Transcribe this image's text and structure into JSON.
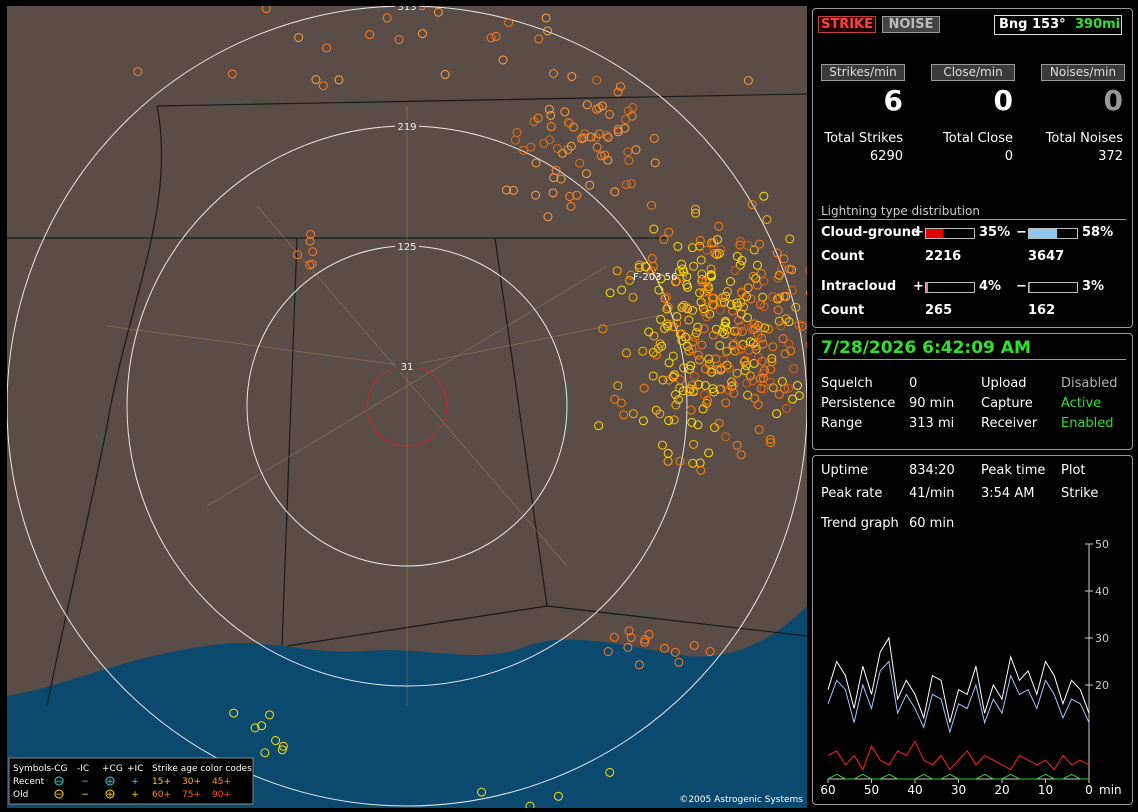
{
  "map": {
    "range_labels": [
      "313",
      "219",
      "125",
      "31"
    ],
    "station_label": "F-203 56",
    "copyright": "©2005 Astrogenic Systems",
    "legend": {
      "symbols_label": "Symbols",
      "symbol_headers": [
        "-CG",
        "-IC",
        "+CG",
        "+IC"
      ],
      "age_label": "Strike age color codes",
      "rows": [
        {
          "label": "Recent",
          "ages": [
            "15+",
            "30+",
            "45+"
          ]
        },
        {
          "label": "Old",
          "ages": [
            "60+",
            "75+",
            "90+"
          ]
        }
      ]
    }
  },
  "status": {
    "strike_button": "STRIKE",
    "noise_button": "NOISE",
    "bearing": "Bng 153°",
    "distance": "390mi"
  },
  "rates": [
    {
      "label": "Strikes/min",
      "value": 6
    },
    {
      "label": "Close/min",
      "value": 0
    },
    {
      "label": "Noises/min",
      "value": 0
    }
  ],
  "totals": [
    {
      "label": "Total Strikes",
      "value": 6290
    },
    {
      "label": "Total Close",
      "value": 0
    },
    {
      "label": "Total Noises",
      "value": 372
    }
  ],
  "distribution": {
    "title": "Lightning type distribution",
    "count_label": "Count",
    "rows": [
      {
        "label": "Cloud-ground",
        "pos_sign": "+",
        "neg_sign": "−",
        "pos": {
          "value": 35,
          "label": "35%",
          "color": "#e00000"
        },
        "neg": {
          "value": 58,
          "label": "58%",
          "color": "#8ec8f0"
        },
        "pos_count": 2216,
        "neg_count": 3647
      },
      {
        "label": "Intracloud",
        "pos_sign": "+",
        "neg_sign": "−",
        "pos": {
          "value": 4,
          "label": "4%",
          "color": "#ff6fa0"
        },
        "neg": {
          "value": 3,
          "label": "3%",
          "color": "#20c040"
        },
        "pos_count": 265,
        "neg_count": 162
      }
    ]
  },
  "timestamp": "7/28/2026 6:42:09 AM",
  "settings": [
    [
      {
        "label": "Squelch",
        "value": "0"
      },
      {
        "label": "Upload",
        "value": "Disabled",
        "color": "#b0b0b0"
      }
    ],
    [
      {
        "label": "Persistence",
        "value": "90 min"
      },
      {
        "label": "Capture",
        "value": "Active",
        "color": "#30e030"
      }
    ],
    [
      {
        "label": "Range",
        "value": "313 mi"
      },
      {
        "label": "Receiver",
        "value": "Enabled",
        "color": "#30e030"
      }
    ]
  ],
  "stats": [
    [
      {
        "label": "Uptime",
        "value": "834:20"
      },
      {
        "label": "Peak time",
        "value": "Plot"
      }
    ],
    [
      {
        "label": "Peak rate",
        "value": "41/min"
      },
      {
        "label": "3:54 AM",
        "value": "Strike"
      }
    ],
    [
      {
        "label": "Trend graph",
        "value": "60 min"
      }
    ]
  ],
  "chart_data": {
    "type": "line",
    "x": [
      60,
      58,
      56,
      54,
      52,
      50,
      48,
      46,
      44,
      42,
      40,
      38,
      36,
      34,
      32,
      30,
      28,
      26,
      24,
      22,
      20,
      18,
      16,
      14,
      12,
      10,
      8,
      6,
      4,
      2,
      0
    ],
    "xlim": [
      60,
      0
    ],
    "ylim": [
      0,
      50
    ],
    "yticks": [
      20,
      30,
      40,
      50
    ],
    "xticks": [
      60,
      50,
      40,
      30,
      20,
      10,
      0
    ],
    "x_axis_label": "min",
    "series": [
      {
        "color": "#ffffff",
        "values": [
          19,
          25,
          22,
          15,
          24,
          18,
          27,
          30,
          17,
          21,
          18,
          13,
          22,
          21,
          12,
          19,
          18,
          24,
          14,
          20,
          17,
          26,
          21,
          23,
          18,
          25,
          22,
          16,
          21,
          19,
          14
        ]
      },
      {
        "color": "#9cc8ff",
        "values": [
          16,
          21,
          19,
          12,
          20,
          15,
          23,
          25,
          14,
          18,
          15,
          11,
          18,
          17,
          10,
          16,
          15,
          20,
          12,
          17,
          14,
          22,
          18,
          19,
          15,
          21,
          18,
          13,
          17,
          16,
          12
        ]
      },
      {
        "color": "#ff2020",
        "values": [
          5,
          6,
          3,
          5,
          2,
          7,
          4,
          3,
          6,
          5,
          8,
          4,
          3,
          5,
          2,
          4,
          6,
          3,
          5,
          4,
          3,
          2,
          5,
          4,
          3,
          4,
          2,
          5,
          3,
          4,
          3
        ]
      },
      {
        "color": "#30d030",
        "values": [
          0,
          1,
          0,
          0,
          1,
          0,
          0,
          1,
          0,
          0,
          0,
          1,
          0,
          0,
          1,
          0,
          0,
          0,
          1,
          0,
          0,
          1,
          0,
          0,
          0,
          1,
          0,
          0,
          1,
          0,
          0
        ]
      }
    ]
  }
}
